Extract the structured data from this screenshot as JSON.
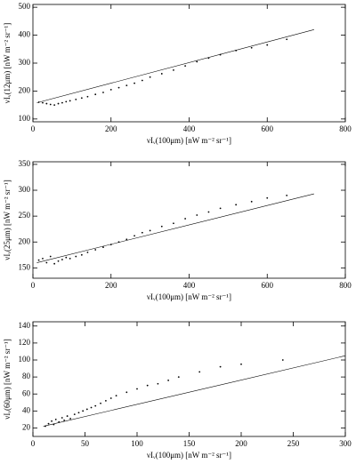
{
  "chart_data": [
    {
      "type": "scatter",
      "xlabel": "νIᵥ(100μm) [nW m⁻² sr⁻¹]",
      "ylabel": "νIᵥ(12μm) [nW m⁻² sr⁻¹]",
      "xlim": [
        0,
        800
      ],
      "xticks": [
        0,
        200,
        400,
        600,
        800
      ],
      "ylim": [
        90,
        510
      ],
      "yticks": [
        100,
        200,
        300,
        400,
        500
      ],
      "series": [
        {
          "color": "#000000",
          "x": [
            15,
            25,
            35,
            45,
            55,
            65,
            75,
            85,
            95,
            110,
            125,
            140,
            160,
            180,
            200,
            220,
            240,
            260,
            280,
            300,
            330,
            360,
            390,
            420,
            450,
            480,
            520,
            560,
            600,
            650
          ],
          "values": [
            160,
            158,
            155,
            152,
            150,
            155,
            158,
            162,
            165,
            170,
            175,
            180,
            188,
            195,
            205,
            212,
            220,
            228,
            238,
            250,
            262,
            275,
            290,
            305,
            318,
            330,
            345,
            355,
            365,
            385
          ]
        },
        {
          "color": "#000000",
          "x": [
            10,
            720
          ],
          "values": [
            158,
            420
          ]
        }
      ]
    },
    {
      "type": "scatter",
      "xlabel": "νIᵥ(100μm) [nW m⁻² sr⁻¹]",
      "ylabel": "νIᵥ(25μm) [nW m⁻² sr⁻¹]",
      "xlim": [
        0,
        800
      ],
      "xticks": [
        0,
        200,
        400,
        600,
        800
      ],
      "ylim": [
        130,
        355
      ],
      "yticks": [
        150,
        200,
        250,
        300,
        350
      ],
      "series": [
        {
          "color": "#000000",
          "x": [
            15,
            25,
            35,
            45,
            55,
            65,
            75,
            85,
            95,
            110,
            125,
            140,
            160,
            180,
            200,
            220,
            240,
            260,
            280,
            300,
            330,
            360,
            390,
            420,
            450,
            480,
            520,
            560,
            600,
            650
          ],
          "values": [
            165,
            168,
            160,
            172,
            158,
            163,
            166,
            170,
            168,
            172,
            175,
            180,
            185,
            190,
            195,
            200,
            205,
            212,
            218,
            222,
            230,
            236,
            245,
            252,
            258,
            265,
            272,
            278,
            285,
            290
          ]
        },
        {
          "color": "#000000",
          "x": [
            10,
            720
          ],
          "values": [
            160,
            293
          ]
        }
      ]
    },
    {
      "type": "scatter",
      "xlabel": "νIᵥ(100μm) [nW m⁻² sr⁻¹]",
      "ylabel": "νIᵥ(60μm) [nW m⁻² sr⁻¹]",
      "xlim": [
        0,
        300
      ],
      "xticks": [
        0,
        50,
        100,
        150,
        200,
        250,
        300
      ],
      "ylim": [
        10,
        145
      ],
      "yticks": [
        20,
        40,
        60,
        80,
        100,
        120,
        140
      ],
      "series": [
        {
          "color": "#000000",
          "x": [
            12,
            15,
            18,
            20,
            22,
            25,
            28,
            30,
            33,
            36,
            40,
            44,
            48,
            52,
            56,
            60,
            65,
            70,
            75,
            80,
            90,
            100,
            110,
            120,
            130,
            140,
            160,
            180,
            200,
            240
          ],
          "values": [
            22,
            25,
            28,
            24,
            30,
            27,
            32,
            29,
            34,
            31,
            36,
            38,
            40,
            42,
            44,
            46,
            49,
            52,
            55,
            58,
            62,
            66,
            70,
            72,
            76,
            80,
            86,
            92,
            95,
            100
          ]
        },
        {
          "color": "#000000",
          "x": [
            10,
            300
          ],
          "values": [
            22,
            105
          ]
        }
      ]
    }
  ]
}
